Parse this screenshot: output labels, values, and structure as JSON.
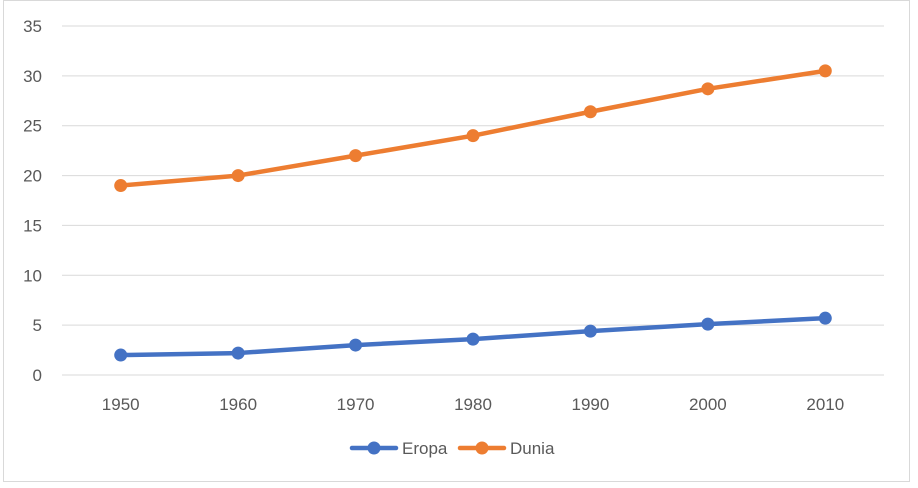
{
  "chart_data": {
    "type": "line",
    "title": "",
    "xlabel": "",
    "ylabel": "",
    "categories": [
      "1950",
      "1960",
      "1970",
      "1980",
      "1990",
      "2000",
      "2010"
    ],
    "ylim": [
      0,
      35
    ],
    "yticks": [
      "0",
      "5",
      "10",
      "15",
      "20",
      "25",
      "30",
      "35"
    ],
    "grid": true,
    "legend_position": "bottom",
    "series": [
      {
        "name": "Eropa",
        "color": "#4472c4",
        "values": [
          2.0,
          2.2,
          3.0,
          3.6,
          4.4,
          5.1,
          5.7
        ]
      },
      {
        "name": "Dunia",
        "color": "#ed7d31",
        "values": [
          19.0,
          20.0,
          22.0,
          24.0,
          26.4,
          28.7,
          30.5
        ]
      }
    ]
  }
}
